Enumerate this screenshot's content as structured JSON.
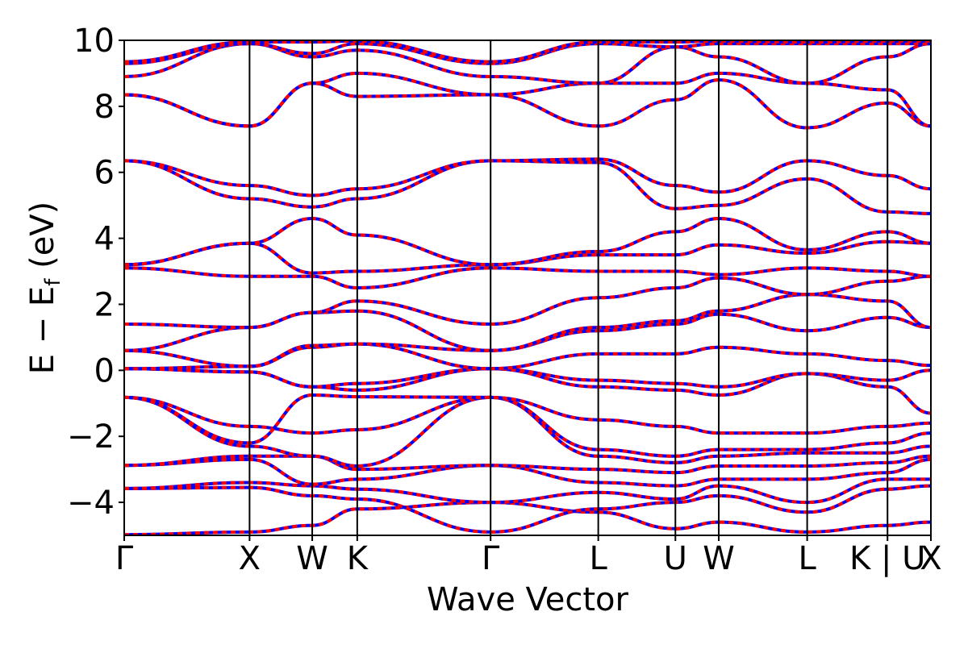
{
  "chart_data": {
    "type": "line",
    "title": "",
    "xlabel": "Wave Vector",
    "ylabel_main": "E − E",
    "ylabel_sub": "f",
    "ylabel_unit": " (eV)",
    "ylim": [
      -5,
      10
    ],
    "yticks": [
      -4,
      -2,
      0,
      2,
      4,
      6,
      8,
      10
    ],
    "ytick_labels": [
      "−4",
      "−2",
      "0",
      "2",
      "4",
      "6",
      "8",
      "10"
    ],
    "xlim": [
      0,
      5.02
    ],
    "kpoints": [
      {
        "label": "Γ",
        "x": 0.0
      },
      {
        "label": "X",
        "x": 0.78
      },
      {
        "label": "W",
        "x": 1.17
      },
      {
        "label": "K",
        "x": 1.45
      },
      {
        "label": "Γ",
        "x": 2.28
      },
      {
        "label": "L",
        "x": 2.95
      },
      {
        "label": "U",
        "x": 3.43
      },
      {
        "label": "W",
        "x": 3.7
      },
      {
        "label": "L",
        "x": 4.25
      },
      {
        "label": "K | U",
        "x": 4.75
      },
      {
        "label": "X",
        "x": 5.02
      }
    ],
    "grid": false,
    "series_colors": {
      "primary": "#ff0000",
      "overlay": "#0000ff"
    },
    "series": [
      {
        "values": [
          -4.98,
          -4.9,
          -4.7,
          -4.2,
          -4.0,
          -4.3,
          -4.8,
          -4.6,
          -4.9,
          -4.7,
          -4.6
        ]
      },
      {
        "values": [
          -3.58,
          -3.55,
          -3.8,
          -3.9,
          -4.9,
          -4.2,
          -4.0,
          -3.8,
          -4.3,
          -3.6,
          -3.5
        ]
      },
      {
        "values": [
          -3.58,
          -3.4,
          -3.5,
          -3.6,
          -4.0,
          -3.7,
          -3.9,
          -3.5,
          -4.0,
          -3.3,
          -3.3
        ]
      },
      {
        "values": [
          -2.88,
          -2.7,
          -3.45,
          -3.3,
          -2.88,
          -3.4,
          -3.5,
          -3.3,
          -3.3,
          -3.1,
          -2.7
        ]
      },
      {
        "values": [
          -2.88,
          -2.6,
          -2.6,
          -3.0,
          -2.88,
          -3.0,
          -3.1,
          -2.9,
          -2.9,
          -2.8,
          -2.6
        ]
      },
      {
        "values": [
          -0.82,
          -2.3,
          -2.6,
          -2.9,
          -0.82,
          -2.6,
          -2.8,
          -2.6,
          -2.5,
          -2.5,
          -2.3
        ]
      },
      {
        "values": [
          -0.82,
          -1.7,
          -1.9,
          -1.8,
          -0.82,
          -2.4,
          -2.6,
          -2.4,
          -2.4,
          -2.2,
          -1.9
        ]
      },
      {
        "values": [
          -0.82,
          -2.2,
          -0.75,
          -0.8,
          -0.82,
          -1.5,
          -1.7,
          -1.9,
          -1.9,
          -1.7,
          -1.6
        ]
      },
      {
        "values": [
          0.05,
          -0.05,
          -0.5,
          -0.6,
          0.05,
          -0.5,
          -0.6,
          -0.75,
          -0.1,
          -0.5,
          -1.3
        ]
      },
      {
        "values": [
          0.05,
          -0.05,
          -0.5,
          -0.4,
          0.05,
          -0.3,
          -0.4,
          -0.5,
          -0.1,
          -0.3,
          0.0
        ]
      },
      {
        "values": [
          0.05,
          0.12,
          0.7,
          0.8,
          0.05,
          0.5,
          0.5,
          0.7,
          0.5,
          0.3,
          0.15
        ]
      },
      {
        "values": [
          0.6,
          0.12,
          0.75,
          0.8,
          0.6,
          1.2,
          1.4,
          1.7,
          1.2,
          1.6,
          1.3
        ]
      },
      {
        "values": [
          0.6,
          1.3,
          1.75,
          1.8,
          0.6,
          1.3,
          1.5,
          1.8,
          2.3,
          2.1,
          1.3
        ]
      },
      {
        "values": [
          1.4,
          1.3,
          1.75,
          2.1,
          1.4,
          2.2,
          2.5,
          2.8,
          2.3,
          2.7,
          2.85
        ]
      },
      {
        "values": [
          3.1,
          2.85,
          2.85,
          2.5,
          3.1,
          3.0,
          3.0,
          2.9,
          3.1,
          3.0,
          2.85
        ]
      },
      {
        "values": [
          3.2,
          3.85,
          2.95,
          3.0,
          3.2,
          3.5,
          3.5,
          3.8,
          3.55,
          3.9,
          3.85
        ]
      },
      {
        "values": [
          3.2,
          3.85,
          4.6,
          4.1,
          3.2,
          3.6,
          4.2,
          4.6,
          3.65,
          4.2,
          3.85
        ]
      },
      {
        "values": [
          6.35,
          5.2,
          4.95,
          5.2,
          6.35,
          6.3,
          4.9,
          5.0,
          5.8,
          4.8,
          4.75
        ]
      },
      {
        "values": [
          6.35,
          5.6,
          5.3,
          5.5,
          6.35,
          6.4,
          5.6,
          5.4,
          6.35,
          5.9,
          5.5
        ]
      },
      {
        "values": [
          8.35,
          7.4,
          8.7,
          8.3,
          8.35,
          7.4,
          8.2,
          8.8,
          7.35,
          8.1,
          7.4
        ]
      },
      {
        "values": [
          8.35,
          7.4,
          8.7,
          9.0,
          8.35,
          8.7,
          8.7,
          9.0,
          8.7,
          8.5,
          7.4
        ]
      },
      {
        "values": [
          8.9,
          9.9,
          9.5,
          9.7,
          8.9,
          8.7,
          9.8,
          9.5,
          8.7,
          9.5,
          9.9
        ]
      },
      {
        "values": [
          9.3,
          9.9,
          9.6,
          9.9,
          9.3,
          9.9,
          9.8,
          9.9,
          9.9,
          9.9,
          9.9
        ]
      },
      {
        "values": [
          9.35,
          9.95,
          9.95,
          9.98,
          9.35,
          9.95,
          9.95,
          9.98,
          9.95,
          9.98,
          9.98
        ]
      }
    ]
  }
}
